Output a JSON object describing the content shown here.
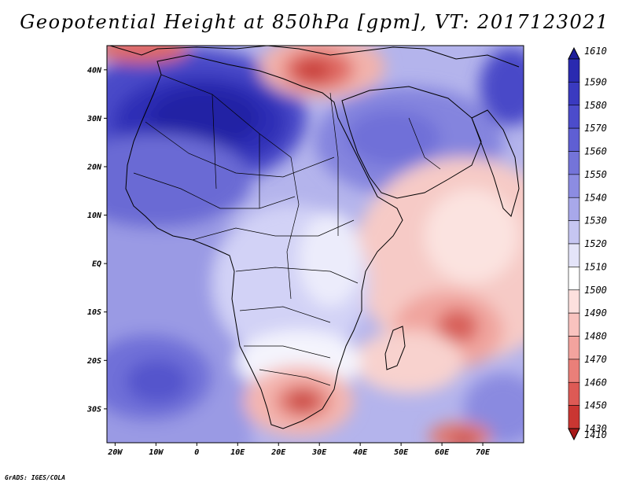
{
  "title": "Geopotential Height at 850hPa [gpm], VT: 2017123021",
  "credit": "GrADS: IGES/COLA",
  "lat_labels": [
    "40N",
    "30N",
    "20N",
    "10N",
    "EQ",
    "10S",
    "20S",
    "30S"
  ],
  "lat_values": [
    40,
    30,
    20,
    10,
    0,
    -10,
    -20,
    -30
  ],
  "lon_labels": [
    "20W",
    "10W",
    "0",
    "10E",
    "20E",
    "30E",
    "40E",
    "50E",
    "60E",
    "70E"
  ],
  "lon_values": [
    -20,
    -10,
    0,
    10,
    20,
    30,
    40,
    50,
    60,
    70
  ],
  "extent": {
    "lon_min": -22,
    "lon_max": 80,
    "lat_min": -37,
    "lat_max": 45
  },
  "colorbar": {
    "top_label": "1610",
    "bottom_label": "1410",
    "levels": [
      "1590",
      "1580",
      "1570",
      "1560",
      "1550",
      "1540",
      "1530",
      "1520",
      "1510",
      "1500",
      "1490",
      "1480",
      "1470",
      "1460",
      "1450",
      "1430"
    ],
    "colors": [
      "#1e1e9b",
      "#2a2ab0",
      "#3a3ac0",
      "#4c4ccb",
      "#5f5fd3",
      "#7474d9",
      "#8c8ce2",
      "#a8a8ea",
      "#c6c6f2",
      "#e4e4f9",
      "#ffffff",
      "#fde0de",
      "#f9c3bf",
      "#f3a39e",
      "#ea7f79",
      "#dd5a55",
      "#ca3632",
      "#a81a1a"
    ]
  },
  "field_colors": {
    "deep_blue": "#2c2cb8",
    "mid_blue": "#6868d6",
    "light_blue": "#a0a0e6",
    "pale_blue": "#ccccf4",
    "white": "#ffffff",
    "pale_red": "#f8d4d0",
    "light_red": "#f0a8a2",
    "mid_red": "#e07a72",
    "deep_red": "#c43c36"
  }
}
